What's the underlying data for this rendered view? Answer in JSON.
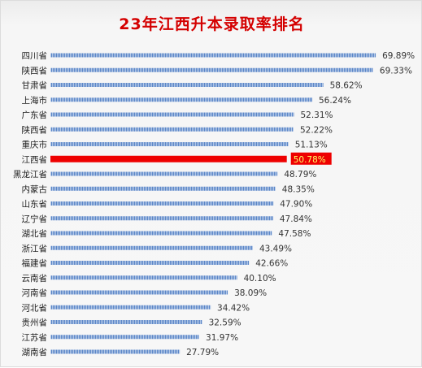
{
  "chart_data": {
    "type": "bar",
    "orientation": "horizontal",
    "title": "23年江西升本录取率排名",
    "xlabel": "",
    "ylabel": "",
    "xlim": [
      0,
      80
    ],
    "grid": false,
    "legend": "none",
    "categories": [
      "四川省",
      "陕西省",
      "甘肃省",
      "上海市",
      "广东省",
      "陕西省",
      "重庆市",
      "江西省",
      "黑龙江省",
      "内蒙古",
      "山东省",
      "辽宁省",
      "湖北省",
      "浙江省",
      "福建省",
      "云南省",
      "河南省",
      "河北省",
      "贵州省",
      "江苏省",
      "湖南省"
    ],
    "values": [
      69.89,
      69.33,
      58.62,
      56.24,
      52.31,
      52.22,
      51.13,
      50.78,
      48.79,
      48.35,
      47.9,
      47.84,
      47.58,
      43.49,
      42.66,
      40.1,
      38.09,
      34.42,
      32.59,
      31.97,
      27.79
    ],
    "value_labels": [
      "69.89%",
      "69.33%",
      "58.62%",
      "56.24%",
      "52.31%",
      "52.22%",
      "51.13%",
      "50.78%",
      "48.79%",
      "48.35%",
      "47.90%",
      "47.84%",
      "47.58%",
      "43.49%",
      "42.66%",
      "40.10%",
      "38.09%",
      "34.42%",
      "32.59%",
      "31.97%",
      "27.79%"
    ],
    "highlight_index": 7,
    "colors": {
      "bar": "#5b86c7",
      "bar_stripe": "#c9d8ef",
      "highlight_bar": "#ee0000",
      "highlight_label_bg": "#ee0000",
      "highlight_label_text": "#ffff66",
      "title": "#d40000"
    }
  }
}
